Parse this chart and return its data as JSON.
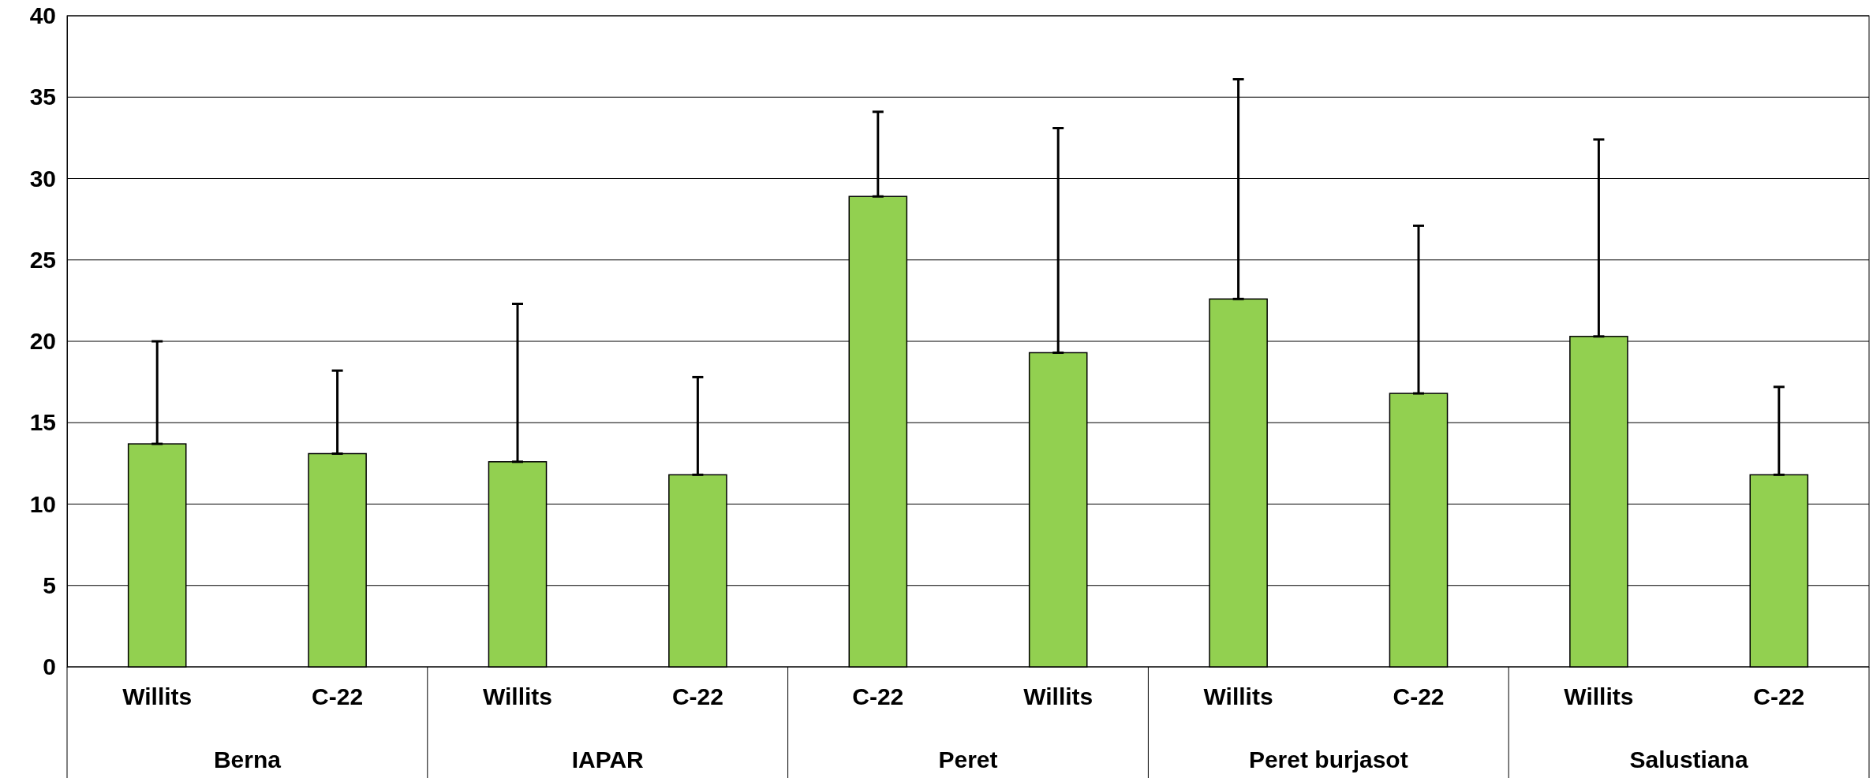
{
  "chart_data": {
    "type": "bar",
    "categories": [
      "Willits",
      "C-22",
      "Willits",
      "C-22",
      "C-22",
      "Willits",
      "Willits",
      "C-22",
      "Willits",
      "C-22"
    ],
    "values": [
      13.7,
      13.1,
      12.6,
      11.8,
      28.9,
      19.3,
      22.6,
      16.8,
      20.3,
      11.8
    ],
    "errors": [
      [
        13.7,
        20.0
      ],
      [
        13.1,
        18.2
      ],
      [
        12.6,
        22.3
      ],
      [
        11.8,
        17.8
      ],
      [
        28.9,
        34.1
      ],
      [
        19.3,
        33.1
      ],
      [
        22.6,
        36.1
      ],
      [
        16.8,
        27.1
      ],
      [
        20.3,
        32.4
      ],
      [
        11.8,
        17.2
      ]
    ],
    "color": "#92d050",
    "annotations": [
      "Berna",
      "IAPAR",
      "Peret",
      "Peret burjasot",
      "Salustiana"
    ],
    "ylim": [
      0,
      40
    ],
    "yticks": [
      0,
      5,
      10,
      15,
      20,
      25,
      30,
      35,
      40
    ],
    "grid": "y"
  }
}
